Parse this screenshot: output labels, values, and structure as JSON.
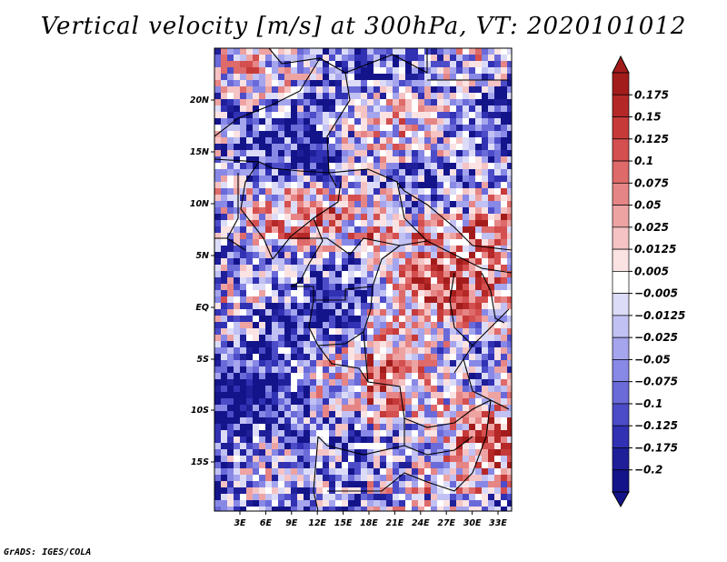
{
  "title": "Vertical velocity [m/s] at 300hPa, VT: 2020101012",
  "footer": "GrADS: IGES/COLA",
  "lat_ticks": [
    "20N",
    "15N",
    "10N",
    "5N",
    "EQ",
    "5S",
    "10S",
    "15S"
  ],
  "lon_ticks": [
    "3E",
    "6E",
    "9E",
    "12E",
    "15E",
    "18E",
    "21E",
    "24E",
    "27E",
    "30E",
    "33E"
  ],
  "colorbar": {
    "labels": [
      "0.175",
      "0.15",
      "0.125",
      "0.1",
      "0.075",
      "0.05",
      "0.025",
      "0.0125",
      "0.005",
      "-0.005",
      "-0.0125",
      "-0.025",
      "-0.05",
      "-0.075",
      "-0.1",
      "-0.125",
      "-0.175",
      "-0.2"
    ],
    "colors": [
      "#a31c1c",
      "#b52828",
      "#c73a3a",
      "#d44f4f",
      "#de6a6a",
      "#e68585",
      "#eea3a3",
      "#f5c3c3",
      "#fbe3e3",
      "#ffffff",
      "#dcdcf8",
      "#c1c1f3",
      "#a5a5ee",
      "#8888e6",
      "#6a6ad9",
      "#4c4cc9",
      "#3131b3",
      "#1f1f9a",
      "#14148a"
    ]
  },
  "colors": {
    "positive": "#c0392b",
    "negative": "#5656d6",
    "border": "#000000"
  }
}
